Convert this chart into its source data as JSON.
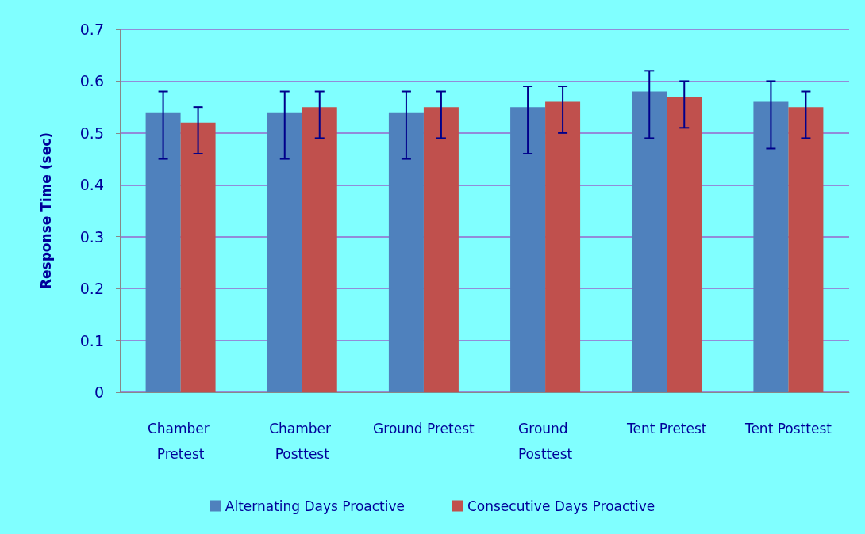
{
  "chart_data": {
    "type": "bar",
    "ylabel": "Response Time (sec)",
    "categories": [
      "Chamber Pretest",
      "Chamber Posttest",
      "Ground Pretest",
      "Ground Posttest",
      "Tent Pretest",
      "Tent Posttest"
    ],
    "series": [
      {
        "name": "Alternating Days Proactive",
        "color": "#4f81bd",
        "values": [
          0.54,
          0.54,
          0.54,
          0.55,
          0.58,
          0.56
        ],
        "errors": [
          [
            0.45,
            0.58
          ],
          [
            0.45,
            0.58
          ],
          [
            0.45,
            0.58
          ],
          [
            0.46,
            0.59
          ],
          [
            0.49,
            0.62
          ],
          [
            0.47,
            0.6
          ]
        ]
      },
      {
        "name": "Consecutive Days Proactive",
        "color": "#c0504d",
        "values": [
          0.52,
          0.55,
          0.55,
          0.56,
          0.57,
          0.55
        ],
        "errors": [
          [
            0.46,
            0.55
          ],
          [
            0.49,
            0.58
          ],
          [
            0.49,
            0.58
          ],
          [
            0.5,
            0.59
          ],
          [
            0.51,
            0.6
          ],
          [
            0.49,
            0.58
          ]
        ]
      }
    ],
    "ylim": [
      0,
      0.7
    ],
    "yticks": [
      0,
      0.1,
      0.2,
      0.3,
      0.4,
      0.5,
      0.6,
      0.7
    ],
    "grid": "y",
    "legend": "bottom"
  }
}
